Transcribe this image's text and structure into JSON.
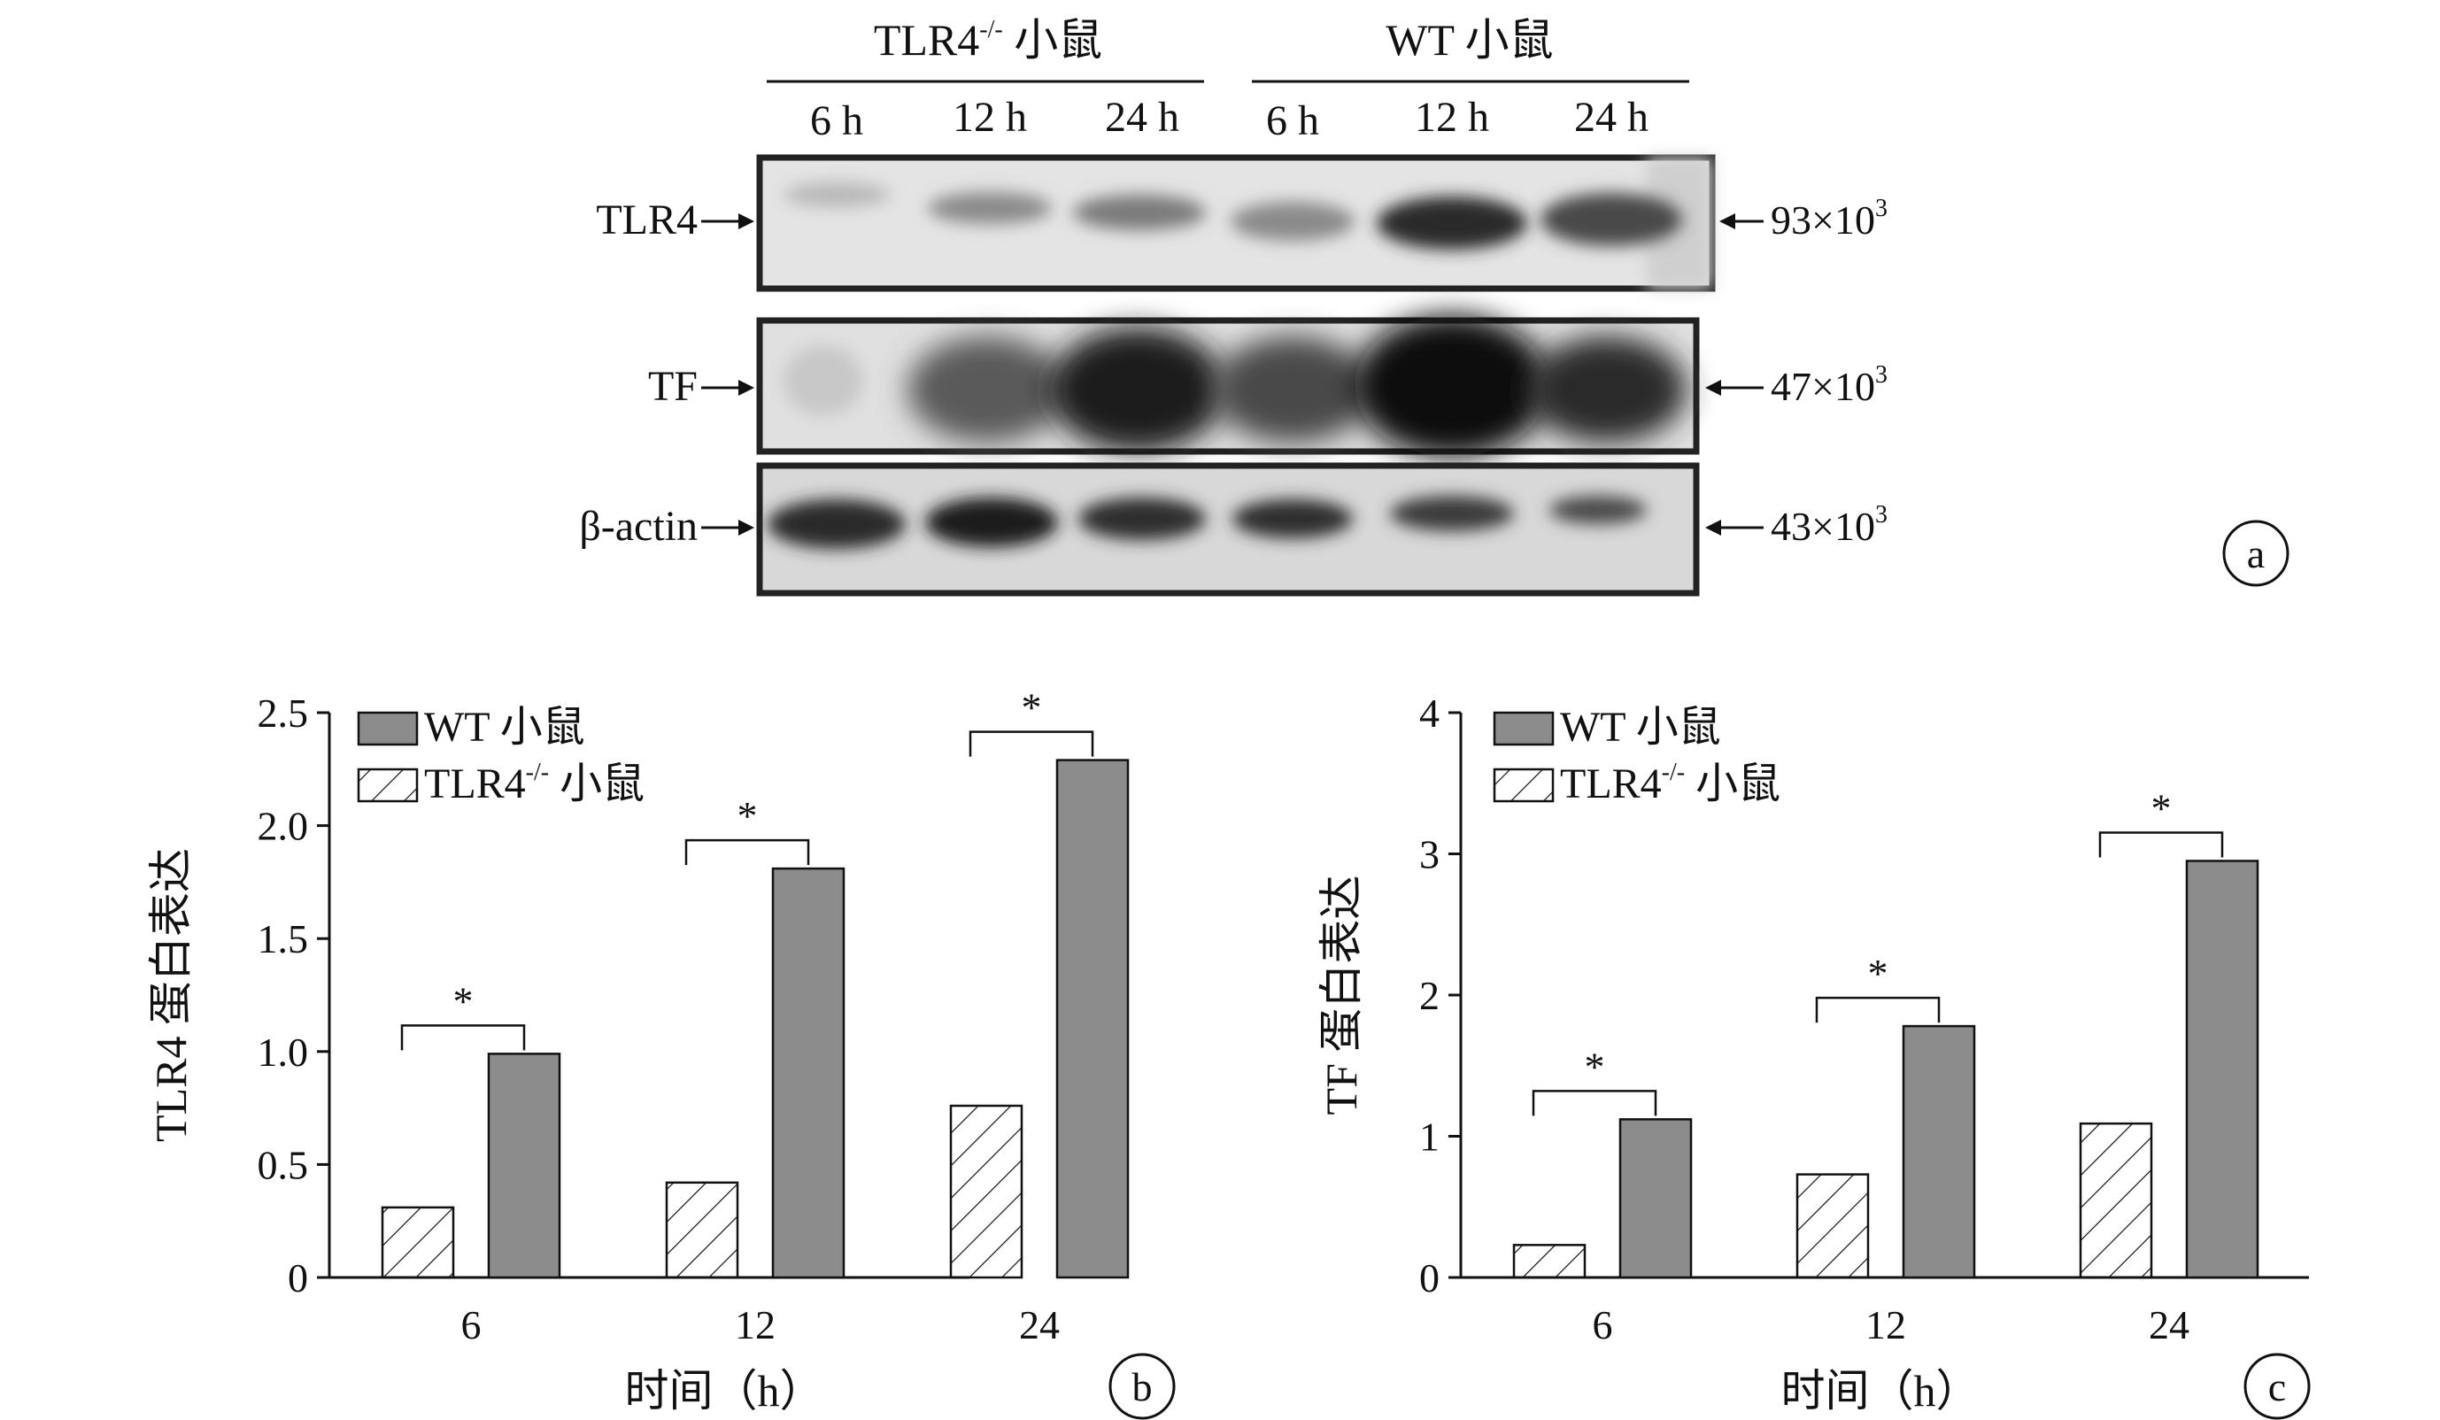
{
  "blot": {
    "groups": [
      {
        "label": "TLR4",
        "sup": "-/-",
        "suffix": " 小鼠"
      },
      {
        "label": "WT 小鼠",
        "sup": "",
        "suffix": ""
      }
    ],
    "lanes": [
      "6 h",
      "12 h",
      "24 h",
      "6 h",
      "12 h",
      "24 h"
    ],
    "rows": [
      {
        "name": "TLR4",
        "size": "93×10",
        "sup": "3"
      },
      {
        "name": "TF",
        "size": "47×10",
        "sup": "3"
      },
      {
        "name": "β-actin",
        "size": "43×10",
        "sup": "3"
      }
    ],
    "panel_label": "a"
  },
  "legend": {
    "wt": "WT 小鼠",
    "ko_prefix": "TLR4",
    "ko_sup": "-/-",
    "ko_suffix": " 小鼠"
  },
  "colors": {
    "wt_fill": "#8c8c8c",
    "ko_fill": "#ffffff",
    "ink": "#111111"
  },
  "chart_data": [
    {
      "type": "bar",
      "panel_label": "b",
      "ylabel": "TLR4 蛋白表达",
      "xlabel": "时间（h）",
      "categories": [
        "6",
        "12",
        "24"
      ],
      "ylim": [
        0,
        2.5
      ],
      "yticks": [
        "0",
        "0.5",
        "1.0",
        "1.5",
        "2.0",
        "2.5"
      ],
      "series": [
        {
          "name": "TLR4-/- 小鼠",
          "values": [
            0.31,
            0.42,
            0.76
          ]
        },
        {
          "name": "WT 小鼠",
          "values": [
            0.99,
            1.81,
            2.29
          ]
        }
      ],
      "annotations": [
        "*",
        "*",
        "*"
      ]
    },
    {
      "type": "bar",
      "panel_label": "c",
      "ylabel": "TF 蛋白表达",
      "xlabel": "时间（h）",
      "categories": [
        "6",
        "12",
        "24"
      ],
      "ylim": [
        0,
        4
      ],
      "yticks": [
        "0",
        "1",
        "2",
        "3",
        "4"
      ],
      "series": [
        {
          "name": "TLR4-/- 小鼠",
          "values": [
            0.23,
            0.73,
            1.09
          ]
        },
        {
          "name": "WT 小鼠",
          "values": [
            1.12,
            1.78,
            2.95
          ]
        }
      ],
      "annotations": [
        "*",
        "*",
        "*"
      ]
    }
  ]
}
